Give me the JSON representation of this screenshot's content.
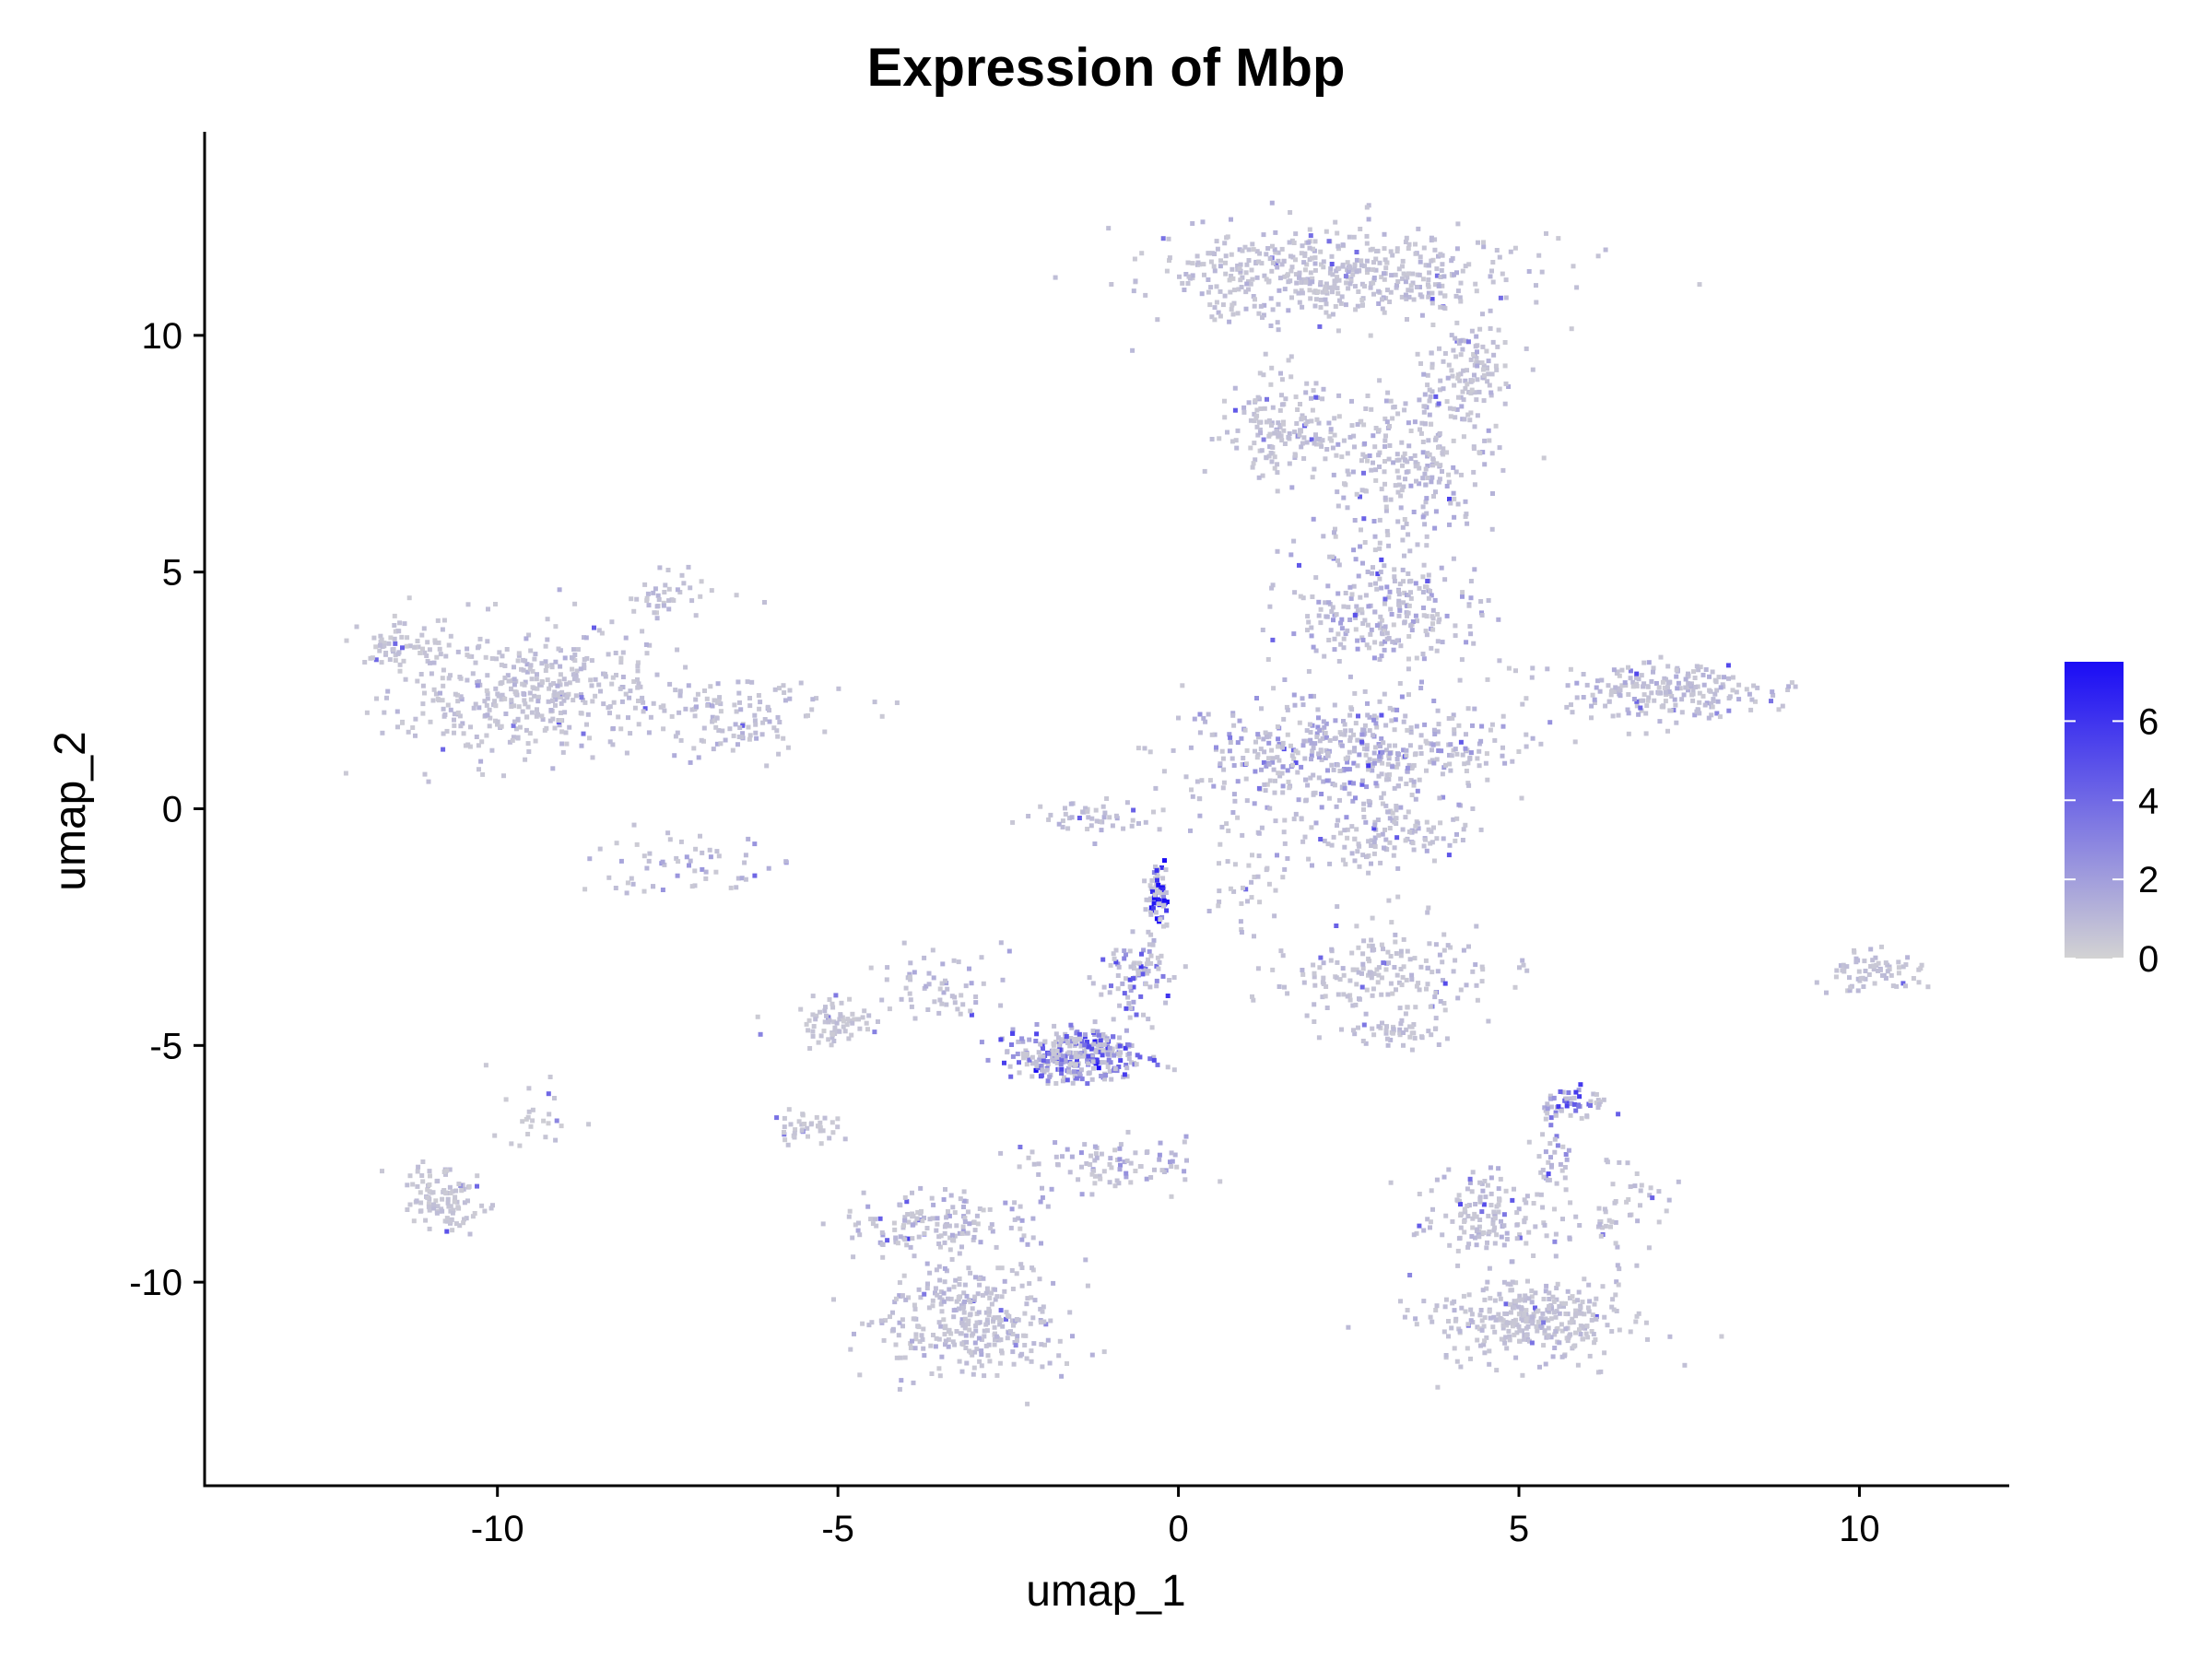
{
  "chart_data": {
    "type": "scatter",
    "title": "Expression of Mbp",
    "xlabel": "umap_1",
    "ylabel": "umap_2",
    "xlim": [
      -14.3,
      12.2
    ],
    "ylim": [
      -14.3,
      14.3
    ],
    "x_ticks": [
      -10,
      -5,
      0,
      5,
      10
    ],
    "y_ticks": [
      -10,
      -5,
      0,
      5,
      10
    ],
    "x_tick_labels": [
      "-10",
      "-5",
      "0",
      "5",
      "10"
    ],
    "y_tick_labels": [
      "-10",
      "-5",
      "0",
      "5",
      "10"
    ],
    "grid": false,
    "legend_position": "right",
    "color_scale": {
      "low_color": "#d3d3d3",
      "high_color": "#1a0cf5",
      "min": 0,
      "max": 7.5,
      "ticks": [
        0,
        2,
        4,
        6
      ],
      "tick_labels": [
        "0",
        "2",
        "4",
        "6"
      ]
    },
    "clusters": [
      {
        "center": [
          2.3,
          11.3
        ],
        "spread": [
          2.5,
          0.9
        ],
        "density": 500,
        "expr": 0.9
      },
      {
        "center": [
          1.5,
          8.0
        ],
        "spread": [
          0.8,
          1.0
        ],
        "density": 150,
        "expr": 0.8
      },
      {
        "center": [
          3.3,
          7.3
        ],
        "spread": [
          1.2,
          1.6
        ],
        "density": 260,
        "expr": 1.2
      },
      {
        "center": [
          4.3,
          9.2
        ],
        "spread": [
          0.6,
          1.0
        ],
        "density": 120,
        "expr": 1.0
      },
      {
        "center": [
          3.0,
          4.2
        ],
        "spread": [
          1.3,
          1.2
        ],
        "density": 260,
        "expr": 1.4
      },
      {
        "center": [
          2.5,
          1.2
        ],
        "spread": [
          2.2,
          1.2
        ],
        "density": 500,
        "expr": 1.6
      },
      {
        "center": [
          3.0,
          -0.6
        ],
        "spread": [
          1.2,
          0.5
        ],
        "density": 120,
        "expr": 1.0
      },
      {
        "center": [
          7.2,
          2.5
        ],
        "spread": [
          1.3,
          0.6
        ],
        "density": 220,
        "expr": 1.1
      },
      {
        "center": [
          -9.5,
          2.5
        ],
        "spread": [
          1.8,
          1.3
        ],
        "density": 420,
        "expr": 0.9
      },
      {
        "center": [
          -11.5,
          3.5
        ],
        "spread": [
          0.6,
          0.4
        ],
        "density": 60,
        "expr": 0.6
      },
      {
        "center": [
          -6.5,
          2.0
        ],
        "spread": [
          1.3,
          0.7
        ],
        "density": 120,
        "expr": 1.0
      },
      {
        "center": [
          -7.5,
          4.5
        ],
        "spread": [
          0.8,
          0.5
        ],
        "density": 40,
        "expr": 0.8
      },
      {
        "center": [
          3.0,
          -3.5
        ],
        "spread": [
          1.5,
          0.9
        ],
        "density": 180,
        "expr": 0.8
      },
      {
        "center": [
          3.2,
          -4.7
        ],
        "spread": [
          0.6,
          0.3
        ],
        "density": 50,
        "expr": 0.7
      },
      {
        "center": [
          10.2,
          -3.4
        ],
        "spread": [
          0.7,
          0.4
        ],
        "density": 70,
        "expr": 0.7
      },
      {
        "center": [
          -5.0,
          -4.5
        ],
        "spread": [
          0.6,
          0.4
        ],
        "density": 70,
        "expr": 0.6
      },
      {
        "center": [
          -3.5,
          -3.8
        ],
        "spread": [
          0.8,
          0.6
        ],
        "density": 60,
        "expr": 1.2
      },
      {
        "center": [
          -1.5,
          -5.2
        ],
        "spread": [
          0.9,
          0.5
        ],
        "density": 320,
        "expr": 3.6
      },
      {
        "center": [
          -0.6,
          -3.5
        ],
        "spread": [
          0.5,
          0.8
        ],
        "density": 90,
        "expr": 3.3
      },
      {
        "center": [
          -0.3,
          -1.8
        ],
        "spread": [
          0.15,
          0.6
        ],
        "density": 70,
        "expr": 6.2
      },
      {
        "center": [
          5.8,
          -6.2
        ],
        "spread": [
          0.4,
          0.3
        ],
        "density": 55,
        "expr": 4.0
      },
      {
        "center": [
          5.5,
          -7.5
        ],
        "spread": [
          0.3,
          0.8
        ],
        "density": 30,
        "expr": 2.5
      },
      {
        "center": [
          -10.8,
          -8.3
        ],
        "spread": [
          0.5,
          0.7
        ],
        "density": 110,
        "expr": 0.6
      },
      {
        "center": [
          -9.5,
          -6.5
        ],
        "spread": [
          0.5,
          0.8
        ],
        "density": 25,
        "expr": 0.5
      },
      {
        "center": [
          -5.5,
          -6.7
        ],
        "spread": [
          0.5,
          0.3
        ],
        "density": 40,
        "expr": 0.6
      },
      {
        "center": [
          -1.0,
          -7.5
        ],
        "spread": [
          1.3,
          0.5
        ],
        "density": 90,
        "expr": 1.6
      },
      {
        "center": [
          -3.0,
          -10.8
        ],
        "spread": [
          1.2,
          1.1
        ],
        "density": 320,
        "expr": 1.0
      },
      {
        "center": [
          -3.5,
          -8.8
        ],
        "spread": [
          1.2,
          0.6
        ],
        "density": 150,
        "expr": 1.2
      },
      {
        "center": [
          5.2,
          -10.8
        ],
        "spread": [
          1.4,
          0.8
        ],
        "density": 330,
        "expr": 0.8
      },
      {
        "center": [
          4.5,
          -8.6
        ],
        "spread": [
          0.9,
          0.8
        ],
        "density": 150,
        "expr": 0.9
      },
      {
        "center": [
          6.5,
          -8.5
        ],
        "spread": [
          0.6,
          1.0
        ],
        "density": 50,
        "expr": 0.7
      },
      {
        "center": [
          -7.3,
          -1.2
        ],
        "spread": [
          1.2,
          0.6
        ],
        "density": 60,
        "expr": 1.5
      },
      {
        "center": [
          -1.2,
          -0.2
        ],
        "spread": [
          1.0,
          0.3
        ],
        "density": 50,
        "expr": 0.9
      },
      {
        "center": [
          1.0,
          -1.5
        ],
        "spread": [
          0.5,
          1.2
        ],
        "density": 40,
        "expr": 0.8
      }
    ]
  }
}
